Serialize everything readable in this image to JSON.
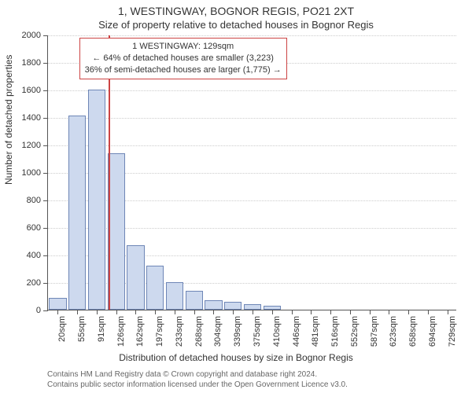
{
  "title_main": "1, WESTINGWAY, BOGNOR REGIS, PO21 2XT",
  "title_sub": "Size of property relative to detached houses in Bognor Regis",
  "y_label": "Number of detached properties",
  "x_label": "Distribution of detached houses by size in Bognor Regis",
  "footer_line1": "Contains HM Land Registry data © Crown copyright and database right 2024.",
  "footer_line2": "Contains public sector information licensed under the Open Government Licence v3.0.",
  "chart": {
    "type": "bar",
    "y_max": 2000,
    "y_ticks": [
      0,
      200,
      400,
      600,
      800,
      1000,
      1200,
      1400,
      1600,
      1800,
      2000
    ],
    "x_categories": [
      "20sqm",
      "55sqm",
      "91sqm",
      "126sqm",
      "162sqm",
      "197sqm",
      "233sqm",
      "268sqm",
      "304sqm",
      "339sqm",
      "375sqm",
      "410sqm",
      "446sqm",
      "481sqm",
      "516sqm",
      "552sqm",
      "587sqm",
      "623sqm",
      "658sqm",
      "694sqm",
      "729sqm"
    ],
    "values": [
      85,
      1410,
      1600,
      1140,
      470,
      320,
      200,
      140,
      70,
      55,
      40,
      30,
      0,
      0,
      0,
      0,
      0,
      0,
      0,
      0,
      0
    ],
    "bar_fill": "#cdd9ee",
    "bar_stroke": "#6e86b6",
    "grid_color": "#cccccc",
    "axis_color": "#555555",
    "background": "#ffffff"
  },
  "marker": {
    "x_index": 3,
    "color": "#cc4444"
  },
  "annotation": {
    "line1": "1 WESTINGWAY: 129sqm",
    "line2": "← 64% of detached houses are smaller (3,223)",
    "line3": "36% of semi-detached houses are larger (1,775) →",
    "border_color": "#cc4444"
  },
  "fonts": {
    "title_size_pt": 14,
    "subtitle_size_pt": 13,
    "axis_label_size_pt": 12,
    "tick_label_size_pt": 11,
    "annotation_size_pt": 11,
    "footer_size_pt": 10
  }
}
